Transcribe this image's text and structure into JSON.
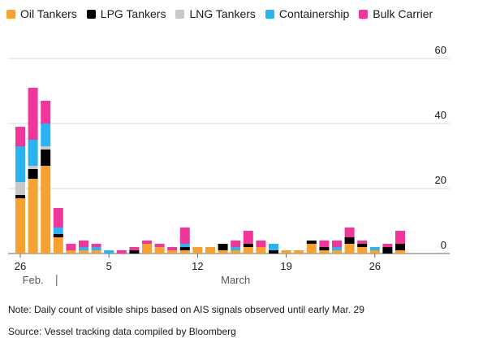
{
  "chart_data": {
    "type": "bar",
    "stacked": true,
    "title": "",
    "xlabel": "",
    "ylabel": "",
    "ylim": [
      0,
      60
    ],
    "yticks": [
      0,
      20,
      40,
      60
    ],
    "y_axis_side": "right",
    "grid": true,
    "legend_position": "top-left",
    "categories": [
      "Feb 26",
      "Feb 27",
      "Feb 28",
      "Mar 1",
      "Mar 2",
      "Mar 3",
      "Mar 4",
      "Mar 5",
      "Mar 6",
      "Mar 7",
      "Mar 8",
      "Mar 9",
      "Mar 10",
      "Mar 11",
      "Mar 12",
      "Mar 13",
      "Mar 14",
      "Mar 15",
      "Mar 16",
      "Mar 17",
      "Mar 18",
      "Mar 19",
      "Mar 20",
      "Mar 21",
      "Mar 22",
      "Mar 23",
      "Mar 24",
      "Mar 25",
      "Mar 26",
      "Mar 27",
      "Mar 28"
    ],
    "x_tick_labels": [
      {
        "index": 0,
        "label": "26"
      },
      {
        "index": 7,
        "label": "5"
      },
      {
        "index": 14,
        "label": "12"
      },
      {
        "index": 21,
        "label": "19"
      },
      {
        "index": 28,
        "label": "26"
      }
    ],
    "month_labels": [
      {
        "index": 1,
        "label": "Feb."
      },
      {
        "index": 17,
        "label": "March"
      }
    ],
    "month_divider_index": 3,
    "series": [
      {
        "name": "Oil Tankers",
        "color": "#f5a232",
        "values": [
          17,
          23,
          27,
          5,
          1,
          1,
          1,
          0,
          0,
          0,
          3,
          2,
          1,
          1,
          2,
          2,
          1,
          1,
          2,
          2,
          0,
          1,
          1,
          3,
          1,
          1,
          3,
          2,
          1,
          0,
          1
        ]
      },
      {
        "name": "LPG Tankers",
        "color": "#000000",
        "values": [
          1,
          3,
          5,
          1,
          0,
          0,
          0,
          0,
          0,
          1,
          0,
          0,
          0,
          1,
          0,
          0,
          2,
          0,
          1,
          0,
          1,
          0,
          0,
          1,
          1,
          0,
          2,
          1,
          0,
          2,
          2
        ]
      },
      {
        "name": "LNG Tankers",
        "color": "#c8c8c8",
        "values": [
          4,
          1,
          1,
          0,
          0,
          0,
          0,
          0,
          0,
          0,
          0,
          0,
          0,
          0,
          0,
          0,
          0,
          0,
          0,
          0,
          0,
          0,
          0,
          0,
          0,
          0,
          0,
          0,
          0,
          0,
          0
        ]
      },
      {
        "name": "Containership",
        "color": "#2ab3f0",
        "values": [
          11,
          8,
          7,
          2,
          0,
          1,
          1,
          1,
          0,
          0,
          0,
          0,
          0,
          1,
          0,
          0,
          0,
          1,
          0,
          0,
          2,
          0,
          0,
          0,
          0,
          1,
          0,
          0,
          1,
          0,
          0
        ]
      },
      {
        "name": "Bulk Carrier",
        "color": "#f0359b",
        "values": [
          6,
          16,
          7,
          6,
          2,
          2,
          1,
          0,
          1,
          1,
          1,
          1,
          1,
          5,
          0,
          0,
          0,
          2,
          4,
          2,
          0,
          0,
          0,
          0,
          2,
          2,
          3,
          1,
          0,
          1,
          4
        ]
      }
    ]
  },
  "notes": {
    "note": "Note: Daily count of visible ships based on AIS signals observed until early Mar. 29",
    "source": "Source: Vessel tracking data compiled by Bloomberg"
  }
}
